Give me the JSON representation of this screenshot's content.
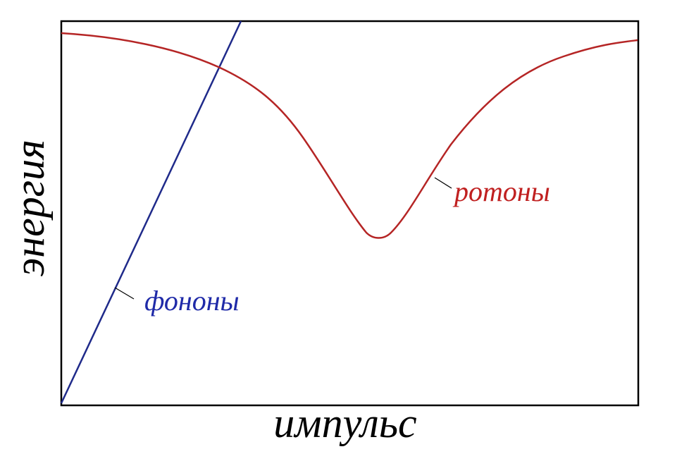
{
  "axes": {
    "x_label": "импульс",
    "y_label": "энергия"
  },
  "curves": [
    {
      "label": "фононы"
    },
    {
      "label": "ротоны"
    }
  ]
}
